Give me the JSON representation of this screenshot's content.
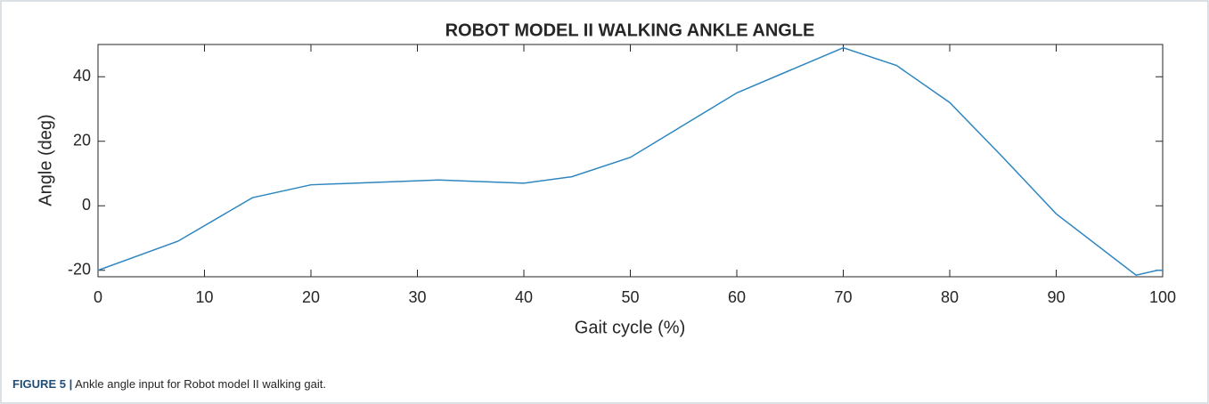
{
  "chart_data": {
    "type": "line",
    "title": "ROBOT MODEL II WALKING ANKLE ANGLE",
    "xlabel": "Gait cycle (%)",
    "ylabel": "Angle (deg)",
    "x": [
      0,
      7.5,
      14.5,
      20,
      32,
      40,
      44.5,
      50,
      55,
      60,
      65,
      70,
      75,
      80,
      85,
      90,
      97.5,
      99.5,
      100
    ],
    "series": [
      {
        "name": "Ankle angle",
        "color": "#2e86c1",
        "values": [
          -20,
          -11,
          2.5,
          6.5,
          8,
          7,
          9,
          15,
          25,
          35,
          42,
          49,
          43.5,
          32,
          15,
          -2.5,
          -21.5,
          -20,
          -20
        ]
      }
    ],
    "xlim": [
      0,
      100
    ],
    "xticks": [
      0,
      10,
      20,
      30,
      40,
      50,
      60,
      70,
      80,
      90,
      100
    ],
    "ylim": [
      -22,
      50
    ],
    "yticks": [
      -20,
      0,
      20,
      40
    ]
  },
  "caption": {
    "label": "FIGURE 5 |",
    "text": "Ankle angle input for Robot model II walking gait."
  }
}
